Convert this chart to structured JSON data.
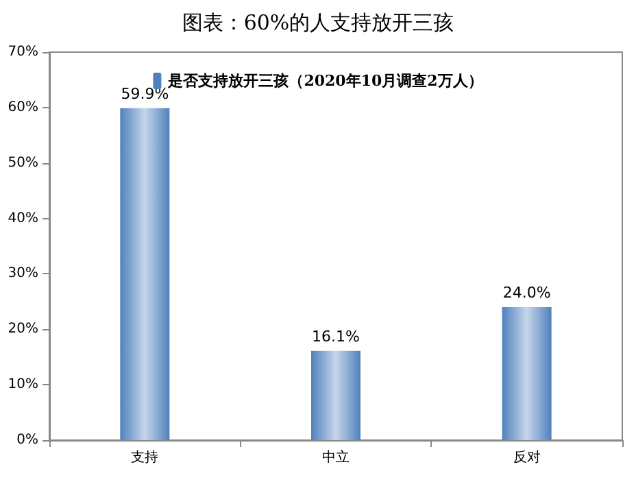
{
  "chart_data": {
    "type": "bar",
    "title": "图表：60%的人支持放开三孩",
    "categories": [
      "支持",
      "中立",
      "反对"
    ],
    "series": [
      {
        "name": "是否支持放开三孩（2020年10月调查2万人）",
        "color": "#4f81bd",
        "values": [
          59.9,
          16.1,
          24.0
        ],
        "value_labels": [
          "59.9%",
          "16.1%",
          "24.0%"
        ]
      }
    ],
    "ylim": [
      0,
      70
    ],
    "yticks": [
      {
        "value": 0,
        "label": "0%"
      },
      {
        "value": 10,
        "label": "10%"
      },
      {
        "value": 20,
        "label": "20%"
      },
      {
        "value": 30,
        "label": "30%"
      },
      {
        "value": 40,
        "label": "40%"
      },
      {
        "value": 50,
        "label": "50%"
      },
      {
        "value": 60,
        "label": "60%"
      },
      {
        "value": 70,
        "label": "70%"
      }
    ],
    "grid": false,
    "legend": "top"
  }
}
